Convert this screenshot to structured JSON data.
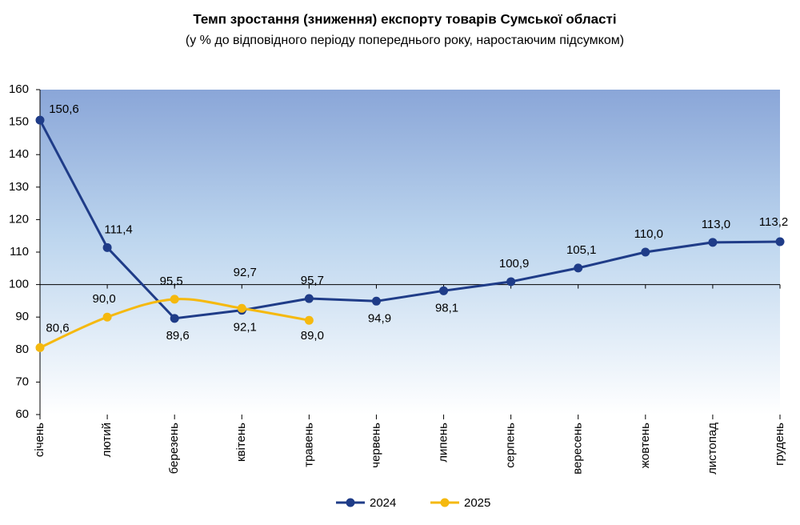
{
  "chart_data": {
    "type": "line",
    "title": "Темп зростання (зниження) експорту товарів Сумської області",
    "subtitle": "(у % до відповідного періоду попереднього року, наростаючим підсумком)",
    "categories": [
      "січень",
      "лютий",
      "березень",
      "квітень",
      "травень",
      "червень",
      "липень",
      "серпень",
      "вересень",
      "жовтень",
      "листопад",
      "грудень"
    ],
    "series": [
      {
        "name": "2024",
        "color": "#1f3c88",
        "smooth": false,
        "values": [
          150.6,
          111.4,
          89.6,
          92.1,
          95.7,
          94.9,
          98.1,
          100.9,
          105.1,
          110.0,
          113.0,
          113.2
        ],
        "value_labels": [
          "150,6",
          "111,4",
          "89,6",
          "92,1",
          "95,7",
          "94,9",
          "98,1",
          "100,9",
          "105,1",
          "110,0",
          "113,0",
          "113,2"
        ]
      },
      {
        "name": "2025",
        "color": "#f5b90f",
        "smooth": true,
        "values": [
          80.6,
          90.0,
          95.5,
          92.7,
          89.0,
          null,
          null,
          null,
          null,
          null,
          null,
          null
        ],
        "value_labels": [
          "80,6",
          "90,0",
          "95,5",
          "92,7",
          "89,0",
          null,
          null,
          null,
          null,
          null,
          null,
          null
        ]
      }
    ],
    "ylim": [
      60,
      160
    ],
    "yticks": [
      60,
      70,
      80,
      90,
      100,
      110,
      120,
      130,
      140,
      150,
      160
    ],
    "x_axis_crosses": 100,
    "legend": "bottom"
  }
}
